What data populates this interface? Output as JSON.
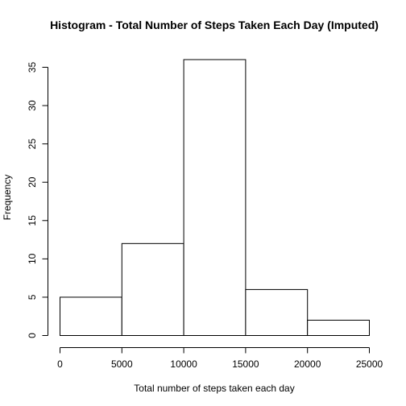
{
  "chart_data": {
    "type": "bar",
    "title": "Histogram - Total Number of Steps Taken Each Day (Imputed)",
    "xlabel": "Total number of steps taken each day",
    "ylabel": "Frequency",
    "bins": [
      {
        "x0": 0,
        "x1": 5000,
        "count": 5
      },
      {
        "x0": 5000,
        "x1": 10000,
        "count": 12
      },
      {
        "x0": 10000,
        "x1": 15000,
        "count": 36
      },
      {
        "x0": 15000,
        "x1": 20000,
        "count": 6
      },
      {
        "x0": 20000,
        "x1": 25000,
        "count": 2
      }
    ],
    "xlim": [
      0,
      25000
    ],
    "ylim": [
      0,
      36
    ],
    "x_ticks": [
      0,
      5000,
      10000,
      15000,
      20000,
      25000
    ],
    "x_tick_labels": [
      "0",
      "5000",
      "10000",
      "15000",
      "20000",
      "25000"
    ],
    "y_ticks": [
      0,
      5,
      10,
      15,
      20,
      25,
      30,
      35
    ],
    "y_tick_labels": [
      "0",
      "5",
      "10",
      "15",
      "20",
      "25",
      "30",
      "35"
    ],
    "grid": false,
    "legend": "none"
  }
}
